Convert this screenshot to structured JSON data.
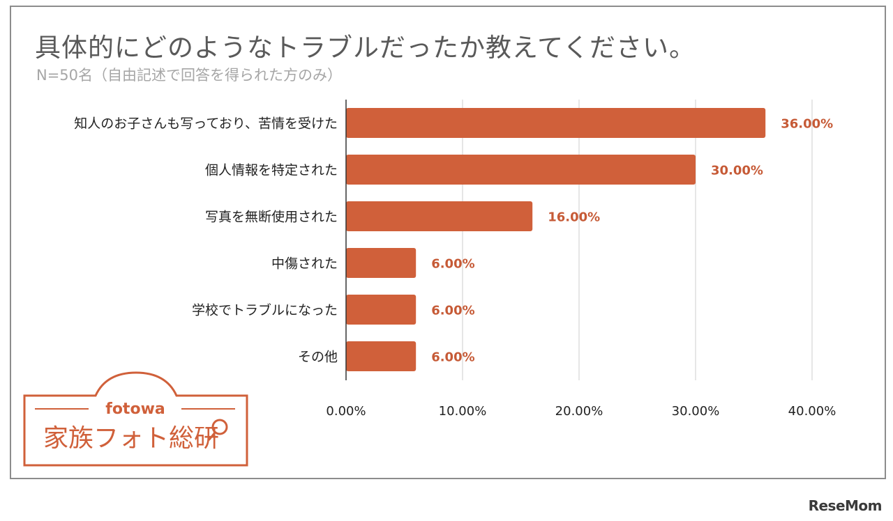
{
  "title": "具体的にどのようなトラブルだったか教えてください。",
  "subtitle": "N=50名（自由記述で回答を得られた方のみ）",
  "chart_data": {
    "type": "bar",
    "orientation": "horizontal",
    "categories": [
      "知人のお子さんも写っており、苦情を受けた",
      "個人情報を特定された",
      "写真を無断使用された",
      "中傷された",
      "学校でトラブルになった",
      "その他"
    ],
    "values": [
      36.0,
      30.0,
      16.0,
      6.0,
      6.0,
      6.0
    ],
    "data_labels": [
      "36.00%",
      "30.00%",
      "16.00%",
      "6.00%",
      "6.00%",
      "6.00%"
    ],
    "x_ticks": [
      "0.00%",
      "10.00%",
      "20.00%",
      "30.00%",
      "40.00%"
    ],
    "xlim": [
      0,
      40
    ],
    "grid": true,
    "bar_color": "#d0603a"
  },
  "logo": {
    "brand_top": "fotowa",
    "brand_main": "家族フォト総研"
  },
  "watermark": "ReseMom"
}
